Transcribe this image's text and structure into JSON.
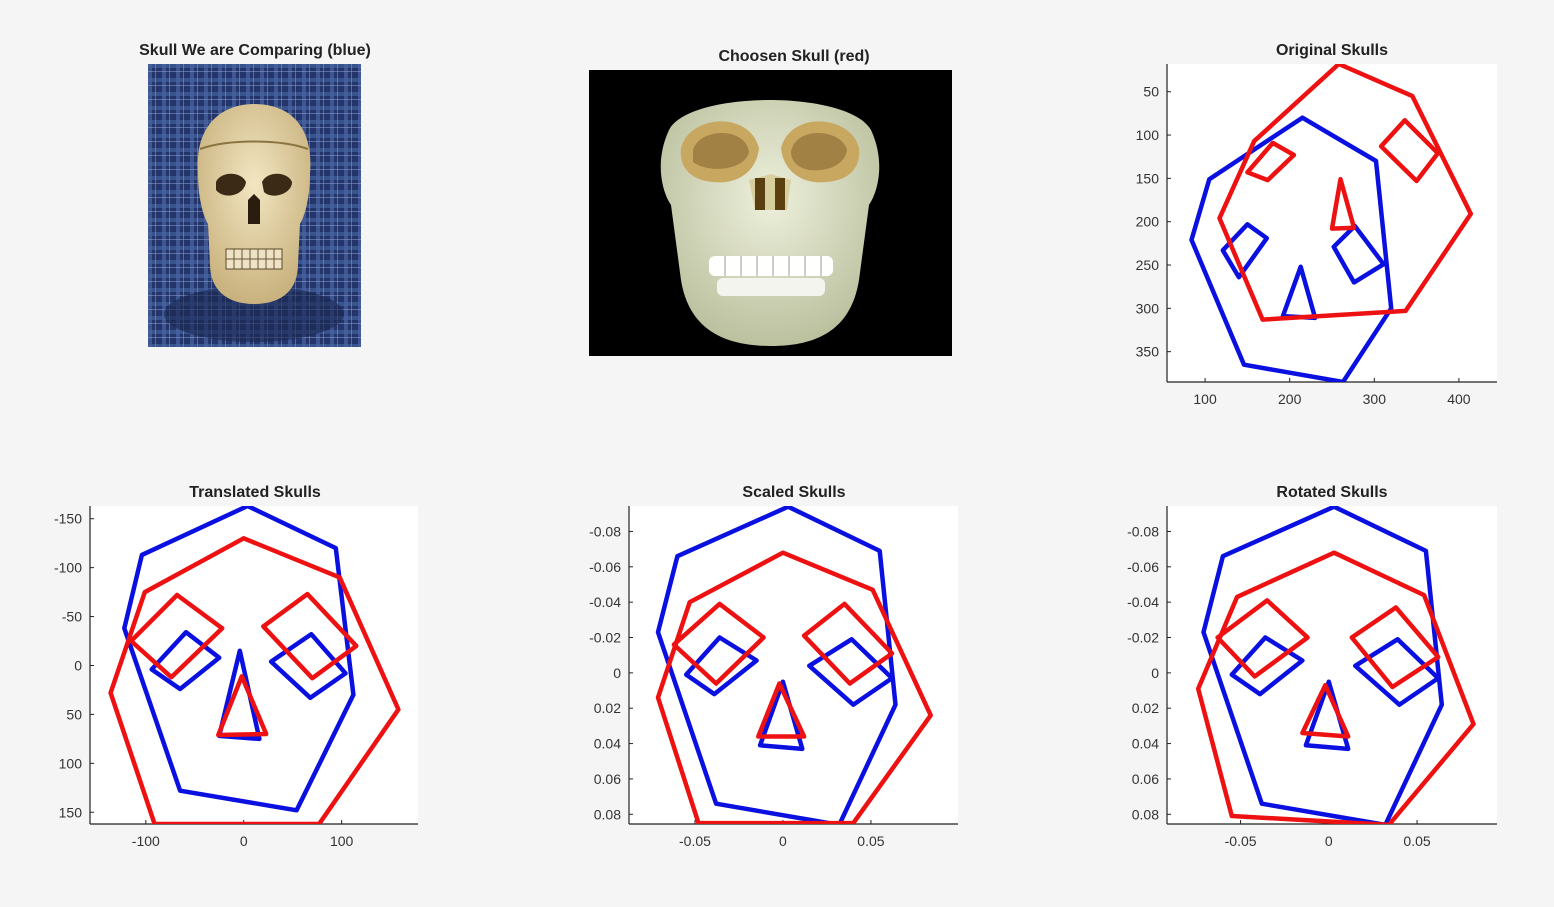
{
  "figure": {
    "photo1": {
      "title": "Skull We are Comparing (blue)"
    },
    "photo2": {
      "title": "Choosen Skull (red)"
    }
  },
  "colors": {
    "blue": "#0a10e0",
    "red": "#ee1111",
    "axis": "#222222"
  },
  "chart_data": [
    {
      "id": "original",
      "type": "line",
      "title": "Original Skulls",
      "xlabel": "",
      "ylabel": "",
      "xlim": [
        55,
        445
      ],
      "ylim": [
        385,
        18
      ],
      "y_reversed": true,
      "xticks": [
        100,
        200,
        300,
        400
      ],
      "yticks": [
        50,
        100,
        150,
        200,
        250,
        300,
        350
      ],
      "series": [
        {
          "color": "blue",
          "polylines": [
            [
              [
                263,
                385
              ],
              [
                146,
                365
              ],
              [
                84,
                221
              ],
              [
                105,
                151
              ],
              [
                215,
                80
              ],
              [
                302,
                130
              ],
              [
                320,
                300
              ],
              [
                263,
                385
              ]
            ],
            [
              [
                121,
                233
              ],
              [
                150,
                203
              ],
              [
                173,
                219
              ],
              [
                140,
                264
              ],
              [
                121,
                233
              ]
            ],
            [
              [
                213,
                252
              ],
              [
                230,
                311
              ],
              [
                192,
                309
              ],
              [
                213,
                252
              ]
            ],
            [
              [
                252,
                229
              ],
              [
                277,
                205
              ],
              [
                311,
                249
              ],
              [
                276,
                270
              ],
              [
                252,
                229
              ]
            ]
          ]
        },
        {
          "color": "red",
          "polylines": [
            [
              [
                258,
                18
              ],
              [
                345,
                55
              ],
              [
                414,
                191
              ],
              [
                337,
                303
              ],
              [
                168,
                313
              ],
              [
                117,
                196
              ],
              [
                158,
                107
              ],
              [
                258,
                18
              ]
            ],
            [
              [
                150,
                143
              ],
              [
                180,
                109
              ],
              [
                205,
                123
              ],
              [
                174,
                152
              ],
              [
                150,
                143
              ]
            ],
            [
              [
                260,
                151
              ],
              [
                276,
                207
              ],
              [
                250,
                208
              ],
              [
                260,
                151
              ]
            ],
            [
              [
                308,
                113
              ],
              [
                336,
                83
              ],
              [
                375,
                121
              ],
              [
                350,
                153
              ],
              [
                308,
                113
              ]
            ]
          ]
        }
      ]
    },
    {
      "id": "translated",
      "type": "line",
      "title": "Translated Skulls",
      "xlabel": "",
      "ylabel": "",
      "xlim": [
        -157,
        178
      ],
      "ylim": [
        162,
        -163
      ],
      "y_reversed": true,
      "xticks": [
        -100,
        0,
        100
      ],
      "yticks": [
        -150,
        -100,
        -50,
        0,
        50,
        100,
        150
      ],
      "series": [
        {
          "color": "blue",
          "polylines": [
            [
              [
                4,
                -163
              ],
              [
                94,
                -120
              ],
              [
                112,
                30
              ],
              [
                54,
                148
              ],
              [
                -65,
                128
              ],
              [
                -122,
                -38
              ],
              [
                -104,
                -113
              ],
              [
                4,
                -163
              ]
            ],
            [
              [
                -94,
                4
              ],
              [
                -59,
                -34
              ],
              [
                -25,
                -8
              ],
              [
                -65,
                24
              ],
              [
                -94,
                4
              ]
            ],
            [
              [
                28,
                -4
              ],
              [
                69,
                -32
              ],
              [
                104,
                8
              ],
              [
                68,
                33
              ],
              [
                28,
                -4
              ]
            ],
            [
              [
                -4,
                -15
              ],
              [
                16,
                75
              ],
              [
                -25,
                72
              ],
              [
                -4,
                -15
              ]
            ]
          ]
        },
        {
          "color": "red",
          "polylines": [
            [
              [
                0,
                -130
              ],
              [
                98,
                -90
              ],
              [
                158,
                45
              ],
              [
                77,
                162
              ],
              [
                -91,
                162
              ],
              [
                -136,
                28
              ],
              [
                -101,
                -75
              ],
              [
                0,
                -130
              ]
            ],
            [
              [
                -115,
                -25
              ],
              [
                -68,
                -72
              ],
              [
                -22,
                -38
              ],
              [
                -74,
                12
              ],
              [
                -115,
                -25
              ]
            ],
            [
              [
                20,
                -40
              ],
              [
                65,
                -73
              ],
              [
                115,
                -20
              ],
              [
                70,
                13
              ],
              [
                20,
                -40
              ]
            ],
            [
              [
                -2,
                11
              ],
              [
                23,
                70
              ],
              [
                -26,
                71
              ],
              [
                -2,
                11
              ]
            ]
          ]
        }
      ]
    },
    {
      "id": "scaled",
      "type": "line",
      "title": "Scaled Skulls",
      "xlabel": "",
      "ylabel": "",
      "xlim": [
        -0.0875,
        0.0995
      ],
      "ylim": [
        0.0855,
        -0.0944
      ],
      "y_reversed": true,
      "xticks": [
        -0.05,
        0,
        0.05
      ],
      "yticks": [
        -0.08,
        -0.06,
        -0.04,
        -0.02,
        0,
        0.02,
        0.04,
        0.06,
        0.08
      ],
      "series": [
        {
          "color": "blue",
          "polylines": [
            [
              [
                0.003,
                -0.094
              ],
              [
                0.055,
                -0.069
              ],
              [
                0.064,
                0.018
              ],
              [
                0.032,
                0.086
              ],
              [
                -0.038,
                0.074
              ],
              [
                -0.071,
                -0.023
              ],
              [
                -0.06,
                -0.066
              ],
              [
                0.003,
                -0.094
              ]
            ],
            [
              [
                -0.055,
                0.001
              ],
              [
                -0.036,
                -0.02
              ],
              [
                -0.015,
                -0.007
              ],
              [
                -0.039,
                0.012
              ],
              [
                -0.055,
                0.001
              ]
            ],
            [
              [
                0.015,
                -0.004
              ],
              [
                0.039,
                -0.019
              ],
              [
                0.062,
                0.003
              ],
              [
                0.04,
                0.018
              ],
              [
                0.015,
                -0.004
              ]
            ],
            [
              [
                0.0,
                0.005
              ],
              [
                0.011,
                0.043
              ],
              [
                -0.013,
                0.041
              ],
              [
                0.0,
                0.005
              ]
            ]
          ]
        },
        {
          "color": "red",
          "polylines": [
            [
              [
                0.0,
                -0.068
              ],
              [
                0.051,
                -0.047
              ],
              [
                0.084,
                0.024
              ],
              [
                0.04,
                0.085
              ],
              [
                -0.048,
                0.085
              ],
              [
                -0.071,
                0.014
              ],
              [
                -0.053,
                -0.04
              ],
              [
                0.0,
                -0.068
              ]
            ],
            [
              [
                -0.062,
                -0.016
              ],
              [
                -0.036,
                -0.039
              ],
              [
                -0.011,
                -0.02
              ],
              [
                -0.038,
                0.006
              ],
              [
                -0.062,
                -0.016
              ]
            ],
            [
              [
                0.012,
                -0.021
              ],
              [
                0.035,
                -0.039
              ],
              [
                0.062,
                -0.011
              ],
              [
                0.038,
                0.006
              ],
              [
                0.012,
                -0.021
              ]
            ],
            [
              [
                -0.002,
                0.006
              ],
              [
                0.012,
                0.036
              ],
              [
                -0.014,
                0.036
              ],
              [
                -0.002,
                0.006
              ]
            ]
          ]
        }
      ]
    },
    {
      "id": "rotated",
      "type": "line",
      "title": "Rotated Skulls",
      "xlabel": "",
      "ylabel": "",
      "xlim": [
        -0.0917,
        0.0953
      ],
      "ylim": [
        0.0855,
        -0.0944
      ],
      "y_reversed": true,
      "xticks": [
        -0.05,
        0,
        0.05
      ],
      "yticks": [
        -0.08,
        -0.06,
        -0.04,
        -0.02,
        0,
        0.02,
        0.04,
        0.06,
        0.08
      ],
      "series": [
        {
          "color": "blue",
          "polylines": [
            [
              [
                0.003,
                -0.094
              ],
              [
                0.055,
                -0.069
              ],
              [
                0.064,
                0.018
              ],
              [
                0.032,
                0.086
              ],
              [
                -0.038,
                0.074
              ],
              [
                -0.071,
                -0.023
              ],
              [
                -0.06,
                -0.066
              ],
              [
                0.003,
                -0.094
              ]
            ],
            [
              [
                -0.055,
                0.001
              ],
              [
                -0.036,
                -0.02
              ],
              [
                -0.015,
                -0.007
              ],
              [
                -0.039,
                0.012
              ],
              [
                -0.055,
                0.001
              ]
            ],
            [
              [
                0.015,
                -0.004
              ],
              [
                0.039,
                -0.019
              ],
              [
                0.062,
                0.003
              ],
              [
                0.04,
                0.018
              ],
              [
                0.015,
                -0.004
              ]
            ],
            [
              [
                0.0,
                0.005
              ],
              [
                0.011,
                0.043
              ],
              [
                -0.013,
                0.041
              ],
              [
                0.0,
                0.005
              ]
            ]
          ]
        },
        {
          "color": "red",
          "polylines": [
            [
              [
                0.003,
                -0.068
              ],
              [
                0.054,
                -0.044
              ],
              [
                0.082,
                0.029
              ],
              [
                0.034,
                0.086
              ],
              [
                -0.055,
                0.081
              ],
              [
                -0.074,
                0.009
              ],
              [
                -0.052,
                -0.043
              ],
              [
                0.003,
                -0.068
              ]
            ],
            [
              [
                -0.063,
                -0.02
              ],
              [
                -0.035,
                -0.041
              ],
              [
                -0.012,
                -0.02
              ],
              [
                -0.042,
                0.002
              ],
              [
                -0.063,
                -0.02
              ]
            ],
            [
              [
                0.013,
                -0.02
              ],
              [
                0.038,
                -0.037
              ],
              [
                0.062,
                -0.009
              ],
              [
                0.036,
                0.008
              ],
              [
                0.013,
                -0.02
              ]
            ],
            [
              [
                -0.002,
                0.007
              ],
              [
                0.011,
                0.036
              ],
              [
                -0.015,
                0.034
              ],
              [
                -0.002,
                0.007
              ]
            ]
          ]
        }
      ]
    }
  ]
}
